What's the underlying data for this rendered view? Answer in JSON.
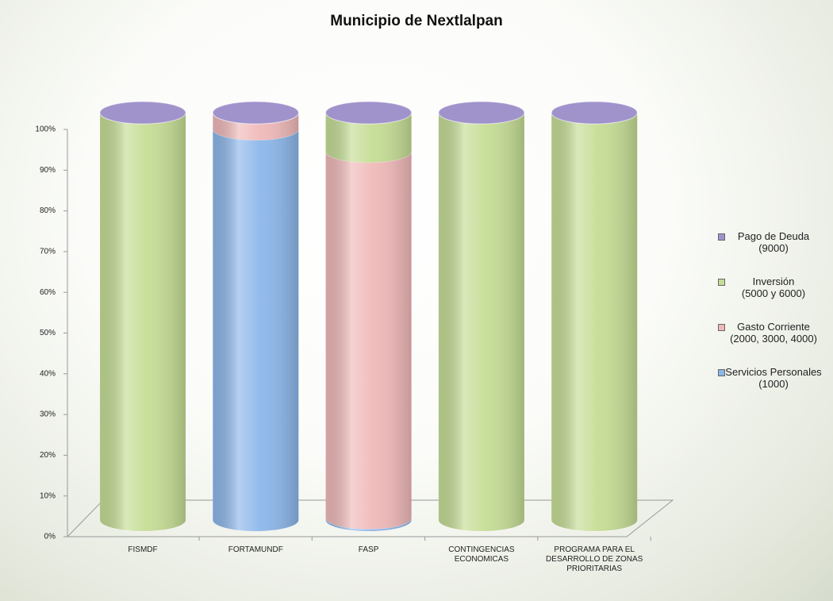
{
  "chart_data": {
    "type": "stacked_cylinder",
    "title": "Municipio de Nextlalpan",
    "categories": [
      "FISMDF",
      "FORTAMUNDF",
      "FASP",
      "CONTINGENCIAS ECONOMICAS",
      "PROGRAMA PARA EL DESARROLLO DE ZONAS PRIORITARIAS"
    ],
    "series": [
      {
        "name": "Servicios Personales\n(1000)",
        "color": "#8db7ea",
        "values": [
          0,
          96,
          0.5,
          0,
          0
        ]
      },
      {
        "name": "Gasto Corriente\n(2000, 3000, 4000)",
        "color": "#f0b9b9",
        "values": [
          0,
          4,
          90,
          0,
          0
        ]
      },
      {
        "name": "Inversión\n(5000 y 6000)",
        "color": "#c5dd95",
        "values": [
          100,
          0,
          9.5,
          100,
          100
        ]
      },
      {
        "name": "Pago de Deuda\n(9000)",
        "color": "#a093cc",
        "values": [
          0,
          0,
          0,
          0,
          0
        ]
      }
    ],
    "ylim": [
      0,
      100
    ],
    "yticks": [
      {
        "value": 0,
        "label": "0%"
      },
      {
        "value": 10,
        "label": "10%"
      },
      {
        "value": 20,
        "label": "20%"
      },
      {
        "value": 30,
        "label": "30%"
      },
      {
        "value": 40,
        "label": "40%"
      },
      {
        "value": 50,
        "label": "50%"
      },
      {
        "value": 60,
        "label": "60%"
      },
      {
        "value": 70,
        "label": "70%"
      },
      {
        "value": 80,
        "label": "80%"
      },
      {
        "value": 90,
        "label": "90%"
      },
      {
        "value": 100,
        "label": "100%"
      }
    ],
    "legend": "right"
  }
}
